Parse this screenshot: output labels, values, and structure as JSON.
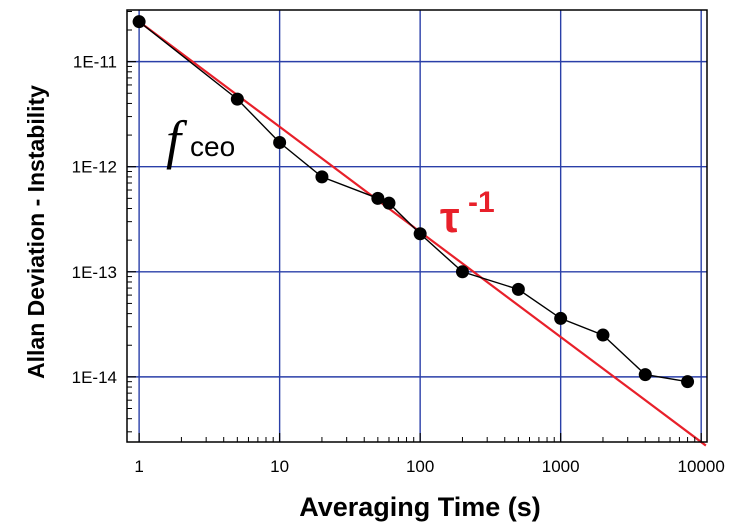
{
  "chart_data": {
    "type": "line",
    "x_scale": "log",
    "y_scale": "log",
    "xlabel": "Averaging Time (s)",
    "ylabel": "Allan Deviation - Instability",
    "xlim": [
      0.82,
      11000
    ],
    "ylim": [
      2.4e-15,
      3.1e-11
    ],
    "x_ticks": [
      {
        "value": 1,
        "label": "1"
      },
      {
        "value": 10,
        "label": "10"
      },
      {
        "value": 100,
        "label": "100"
      },
      {
        "value": 1000,
        "label": "1000"
      },
      {
        "value": 10000,
        "label": "10000"
      }
    ],
    "y_ticks": [
      {
        "value": 1e-11,
        "label": "1E-11"
      },
      {
        "value": 1e-12,
        "label": "1E-12"
      },
      {
        "value": 1e-13,
        "label": "1E-13"
      },
      {
        "value": 1e-14,
        "label": "1E-14"
      }
    ],
    "grid": true,
    "series": [
      {
        "name": "fceo",
        "color": "#000000",
        "marker": "circle",
        "x": [
          1,
          5,
          10,
          20,
          50,
          60,
          100,
          200,
          500,
          1000,
          2000,
          4000,
          8000
        ],
        "y": [
          2.4e-11,
          4.4e-12,
          1.7e-12,
          8e-13,
          5e-13,
          4.5e-13,
          2.3e-13,
          1e-13,
          6.8e-14,
          3.6e-14,
          2.5e-14,
          1.05e-14,
          9e-15
        ]
      },
      {
        "name": "τ-1",
        "color": "#e8202a",
        "marker": "none",
        "x": [
          1,
          10800
        ],
        "y": [
          2.4e-11,
          2.22e-15
        ]
      }
    ],
    "annotations": {
      "fceo_main": "f",
      "fceo_sub": "ceo",
      "tau_main": "τ",
      "tau_sup": "-1"
    }
  }
}
